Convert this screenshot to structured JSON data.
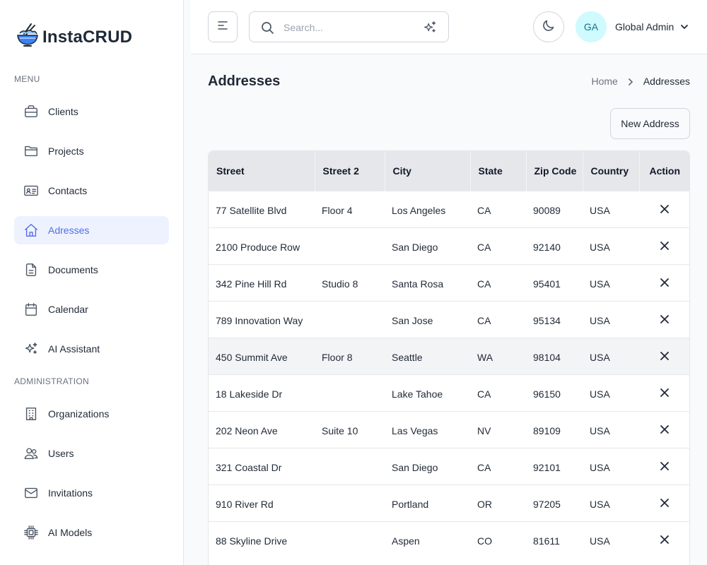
{
  "app": {
    "name": "InstaCRUD"
  },
  "sidebar": {
    "menu_label": "MENU",
    "admin_label": "ADMINISTRATION",
    "items": [
      {
        "label": "Clients",
        "icon": "briefcase-icon"
      },
      {
        "label": "Projects",
        "icon": "folder-icon"
      },
      {
        "label": "Contacts",
        "icon": "contact-card-icon"
      },
      {
        "label": "Adresses",
        "icon": "home-icon",
        "active": true
      },
      {
        "label": "Documents",
        "icon": "document-icon"
      },
      {
        "label": "Calendar",
        "icon": "calendar-icon"
      },
      {
        "label": "AI Assistant",
        "icon": "sparkles-icon"
      }
    ],
    "admin_items": [
      {
        "label": "Organizations",
        "icon": "building-icon"
      },
      {
        "label": "Users",
        "icon": "users-icon"
      },
      {
        "label": "Invitations",
        "icon": "envelope-icon"
      },
      {
        "label": "AI Models",
        "icon": "chip-icon"
      }
    ]
  },
  "header": {
    "search_placeholder": "Search...",
    "user": {
      "initials": "GA",
      "name": "Global Admin"
    }
  },
  "page": {
    "title": "Addresses",
    "breadcrumb": {
      "home": "Home",
      "current": "Addresses"
    },
    "new_button_label": "New Address"
  },
  "table": {
    "columns": [
      "Street",
      "Street 2",
      "City",
      "State",
      "Zip Code",
      "Country",
      "Action"
    ],
    "rows": [
      {
        "street": "77 Satellite Blvd",
        "street2": "Floor 4",
        "city": "Los Angeles",
        "state": "CA",
        "zip": "90089",
        "country": "USA"
      },
      {
        "street": "2100 Produce Row",
        "street2": "",
        "city": "San Diego",
        "state": "CA",
        "zip": "92140",
        "country": "USA"
      },
      {
        "street": "342 Pine Hill Rd",
        "street2": "Studio 8",
        "city": "Santa Rosa",
        "state": "CA",
        "zip": "95401",
        "country": "USA"
      },
      {
        "street": "789 Innovation Way",
        "street2": "",
        "city": "San Jose",
        "state": "CA",
        "zip": "95134",
        "country": "USA"
      },
      {
        "street": "450 Summit Ave",
        "street2": "Floor 8",
        "city": "Seattle",
        "state": "WA",
        "zip": "98104",
        "country": "USA"
      },
      {
        "street": "18 Lakeside Dr",
        "street2": "",
        "city": "Lake Tahoe",
        "state": "CA",
        "zip": "96150",
        "country": "USA"
      },
      {
        "street": "202 Neon Ave",
        "street2": "Suite 10",
        "city": "Las Vegas",
        "state": "NV",
        "zip": "89109",
        "country": "USA"
      },
      {
        "street": "321 Coastal Dr",
        "street2": "",
        "city": "San Diego",
        "state": "CA",
        "zip": "92101",
        "country": "USA"
      },
      {
        "street": "910 River Rd",
        "street2": "",
        "city": "Portland",
        "state": "OR",
        "zip": "97205",
        "country": "USA"
      },
      {
        "street": "88 Skyline Drive",
        "street2": "",
        "city": "Aspen",
        "state": "CO",
        "zip": "81611",
        "country": "USA"
      }
    ],
    "highlighted_row": 4
  },
  "colors": {
    "accent": "#4f6ee8",
    "active_bg": "#eef2ff",
    "avatar_bg": "#cffafe",
    "header_row_bg": "#e5e7eb",
    "hover_row_bg": "#f3f4f6"
  }
}
